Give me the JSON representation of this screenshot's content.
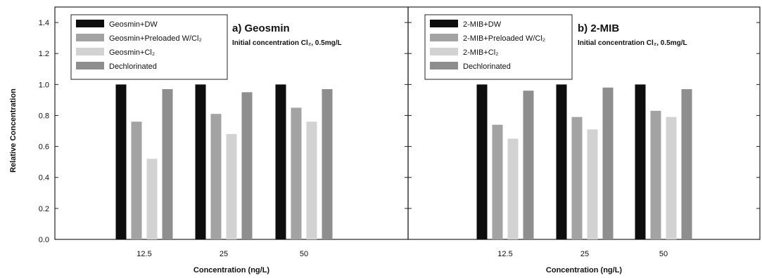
{
  "ylabel": "Relative Concentration",
  "colors": {
    "dw": "#0d0d0d",
    "preloaded": "#a3a3a3",
    "cl2": "#d2d2d2",
    "dechlorinated": "#8e8e8e"
  },
  "chart_data": [
    {
      "type": "bar",
      "title": "a) Geosmin",
      "subtitle": "Initial concentration Cl₂, 0.5mg/L",
      "xlabel": "Concentration (ng/L)",
      "ylabel": "Relative Concentration",
      "categories": [
        "12.5",
        "25",
        "50"
      ],
      "ylim": [
        0,
        1.5
      ],
      "yticks": [
        "0.0",
        "0.2",
        "0.4",
        "0.6",
        "0.8",
        "1.0",
        "1.2",
        "1.4"
      ],
      "legend_position": "top-left",
      "series": [
        {
          "name": "Geosmin+DW",
          "color_key": "dw",
          "values": [
            1.0,
            1.0,
            1.0
          ]
        },
        {
          "name": "Geosmin+Preloaded W/Cl₂",
          "color_key": "preloaded",
          "values": [
            0.76,
            0.81,
            0.85
          ]
        },
        {
          "name": "Geosmin+Cl₂",
          "color_key": "cl2",
          "values": [
            0.52,
            0.68,
            0.76
          ]
        },
        {
          "name": "Dechlorinated",
          "color_key": "dechlorinated",
          "values": [
            0.97,
            0.95,
            0.97
          ]
        }
      ]
    },
    {
      "type": "bar",
      "title": "b) 2-MIB",
      "subtitle": "Initial concentration Cl₂, 0.5mg/L",
      "xlabel": "Concentration (ng/L)",
      "categories": [
        "12.5",
        "25",
        "50"
      ],
      "ylim": [
        0,
        1.5
      ],
      "yticks": [
        "0.0",
        "0.2",
        "0.4",
        "0.6",
        "0.8",
        "1.0",
        "1.2",
        "1.4"
      ],
      "legend_position": "top-left",
      "series": [
        {
          "name": "2-MIB+DW",
          "color_key": "dw",
          "values": [
            1.0,
            1.0,
            1.0
          ]
        },
        {
          "name": "2-MIB+Preloaded W/Cl₂",
          "color_key": "preloaded",
          "values": [
            0.74,
            0.79,
            0.83
          ]
        },
        {
          "name": "2-MIB+Cl₂",
          "color_key": "cl2",
          "values": [
            0.65,
            0.71,
            0.79
          ]
        },
        {
          "name": "Dechlorinated",
          "color_key": "dechlorinated",
          "values": [
            0.96,
            0.98,
            0.97
          ]
        }
      ]
    }
  ]
}
